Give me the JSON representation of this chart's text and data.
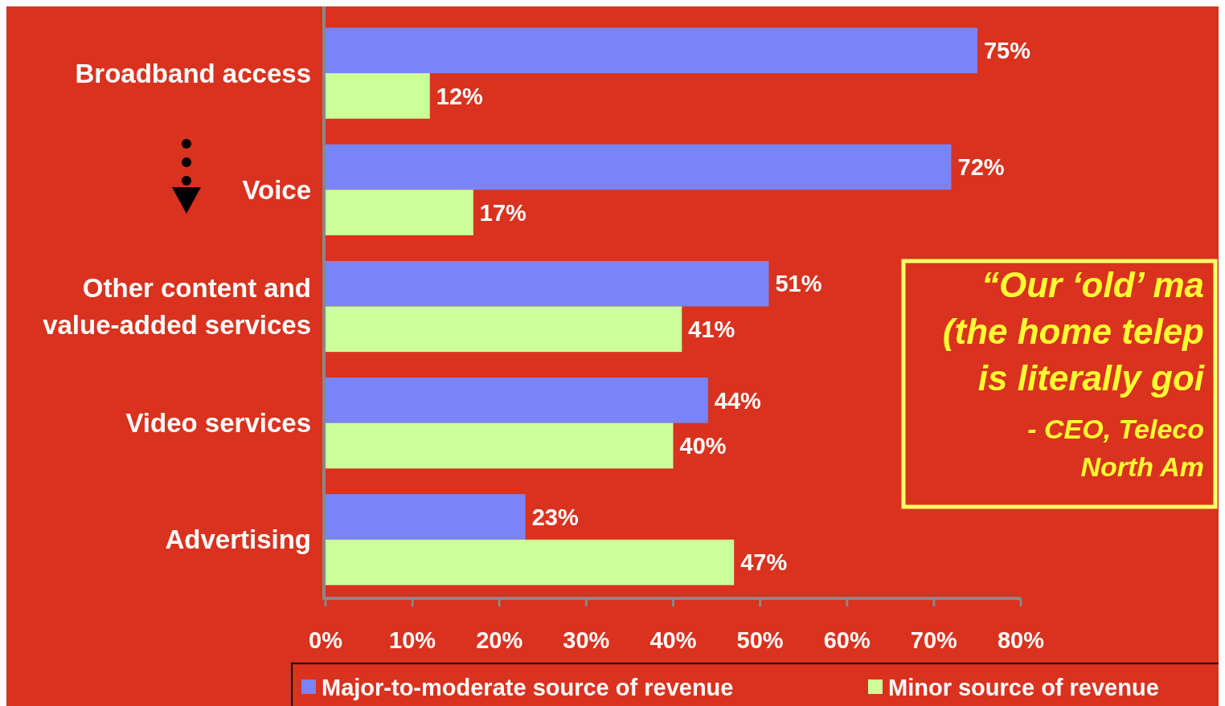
{
  "chart_data": {
    "type": "bar",
    "orientation": "horizontal",
    "categories": [
      "Broadband access",
      "Voice",
      "Other content and\nvalue-added services",
      "Video services",
      "Advertising"
    ],
    "series": [
      {
        "name": "Major-to-moderate source of revenue",
        "color": "#7b84f7",
        "values": [
          75,
          72,
          51,
          44,
          23
        ]
      },
      {
        "name": "Minor source of revenue",
        "color": "#ccff99",
        "values": [
          12,
          17,
          41,
          40,
          47
        ]
      }
    ],
    "xlim": [
      0,
      80
    ],
    "xticks": [
      {
        "value": 0,
        "label": "0%"
      },
      {
        "value": 10,
        "label": "10%"
      },
      {
        "value": 20,
        "label": "20%"
      },
      {
        "value": 30,
        "label": "30%"
      },
      {
        "value": 40,
        "label": "40%"
      },
      {
        "value": 50,
        "label": "50%"
      },
      {
        "value": 60,
        "label": "60%"
      },
      {
        "value": 70,
        "label": "70%"
      },
      {
        "value": 80,
        "label": "80%"
      }
    ],
    "value_labels": [
      [
        "75%",
        "72%",
        "51%",
        "44%",
        "23%"
      ],
      [
        "12%",
        "17%",
        "41%",
        "40%",
        "47%"
      ]
    ],
    "legend": "bottom",
    "annotations": [
      "“Our ‘old’ ma",
      "(the home telep",
      "is literally goi",
      "- CEO, Teleco",
      "North Am"
    ]
  }
}
